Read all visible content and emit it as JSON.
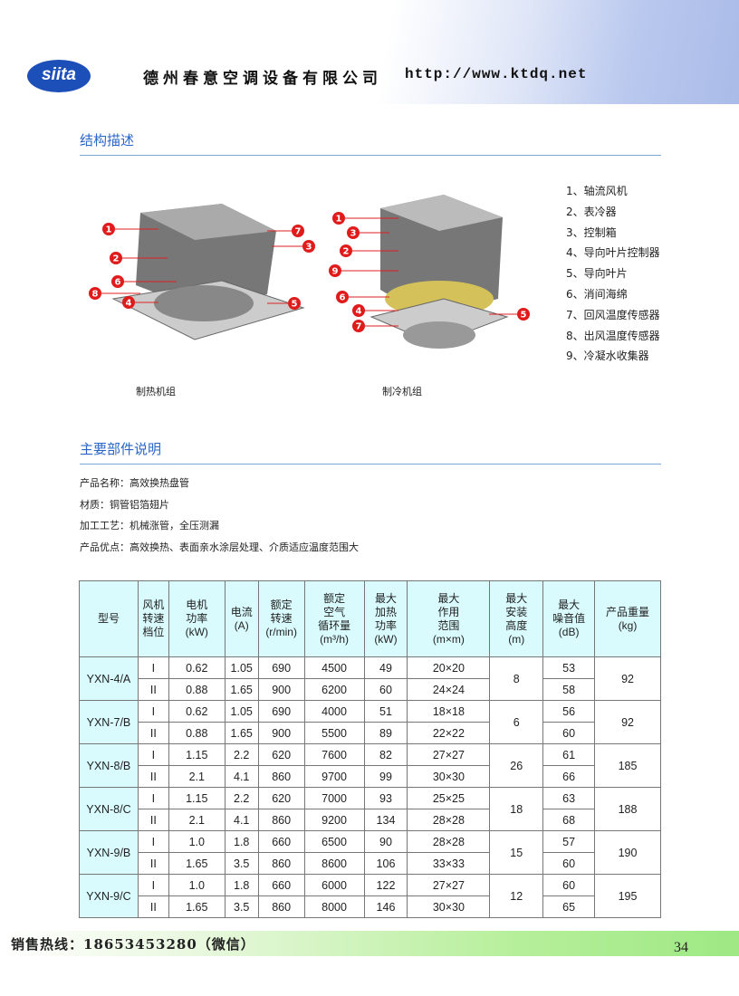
{
  "header": {
    "logo": "siita",
    "company": "德州春意空调设备有限公司",
    "url": "http://www.ktdq.net"
  },
  "section1": {
    "title": "结构描述",
    "legend": [
      "1、轴流风机",
      "2、表冷器",
      "3、控制箱",
      "4、导向叶片控制器",
      "5、导向叶片",
      "6、消间海绵",
      "7、回风温度传感器",
      "8、出风温度传感器",
      "9、冷凝水收集器"
    ],
    "caption_heat": "制热机组",
    "caption_cool": "制冷机组",
    "heat_labels": [
      "1",
      "2",
      "6",
      "8",
      "4",
      "7",
      "3",
      "5"
    ],
    "cool_labels": [
      "1",
      "3",
      "2",
      "9",
      "6",
      "4",
      "7",
      "5"
    ]
  },
  "section2": {
    "title": "主要部件说明",
    "lines": [
      "产品名称：高效换热盘管",
      "材质：铜管铝箔翅片",
      "加工工艺：机械涨管，全压测漏",
      "产品优点：高效换热、表面亲水涂层处理、介质适应温度范围大"
    ]
  },
  "table": {
    "headers": [
      "型号",
      "风机\n转速\n档位",
      "电机\n功率\n(kW)",
      "电流\n(A)",
      "额定\n转速\n(r/min)",
      "额定\n空气\n循环量\n(m³/h)",
      "最大\n加热\n功率\n(kW)",
      "最大\n作用\n范围\n(m×m)",
      "最大\n安装\n高度\n(m)",
      "最大\n噪音值\n(dB)",
      "产品重量\n(kg)"
    ],
    "models": [
      {
        "model": "YXN-4/A",
        "height": "8",
        "weight": "92",
        "rows": [
          [
            "I",
            "0.62",
            "1.05",
            "690",
            "4500",
            "49",
            "20×20",
            "53"
          ],
          [
            "II",
            "0.88",
            "1.65",
            "900",
            "6200",
            "60",
            "24×24",
            "58"
          ]
        ]
      },
      {
        "model": "YXN-7/B",
        "height": "6",
        "weight": "92",
        "rows": [
          [
            "I",
            "0.62",
            "1.05",
            "690",
            "4000",
            "51",
            "18×18",
            "56"
          ],
          [
            "II",
            "0.88",
            "1.65",
            "900",
            "5500",
            "89",
            "22×22",
            "60"
          ]
        ]
      },
      {
        "model": "YXN-8/B",
        "height": "26",
        "weight": "185",
        "rows": [
          [
            "I",
            "1.15",
            "2.2",
            "620",
            "7600",
            "82",
            "27×27",
            "61"
          ],
          [
            "II",
            "2.1",
            "4.1",
            "860",
            "9700",
            "99",
            "30×30",
            "66"
          ]
        ]
      },
      {
        "model": "YXN-8/C",
        "height": "18",
        "weight": "188",
        "rows": [
          [
            "I",
            "1.15",
            "2.2",
            "620",
            "7000",
            "93",
            "25×25",
            "63"
          ],
          [
            "II",
            "2.1",
            "4.1",
            "860",
            "9200",
            "134",
            "28×28",
            "68"
          ]
        ]
      },
      {
        "model": "YXN-9/B",
        "height": "15",
        "weight": "190",
        "rows": [
          [
            "I",
            "1.0",
            "1.8",
            "660",
            "6500",
            "90",
            "28×28",
            "57"
          ],
          [
            "II",
            "1.65",
            "3.5",
            "860",
            "8600",
            "106",
            "33×33",
            "60"
          ]
        ]
      },
      {
        "model": "YXN-9/C",
        "height": "12",
        "weight": "195",
        "rows": [
          [
            "I",
            "1.0",
            "1.8",
            "660",
            "6000",
            "122",
            "27×27",
            "60"
          ],
          [
            "II",
            "1.65",
            "3.5",
            "860",
            "8000",
            "146",
            "30×30",
            "65"
          ]
        ]
      }
    ]
  },
  "footer": {
    "hotline": "销售热线：18653453280（微信）",
    "page": "34"
  }
}
